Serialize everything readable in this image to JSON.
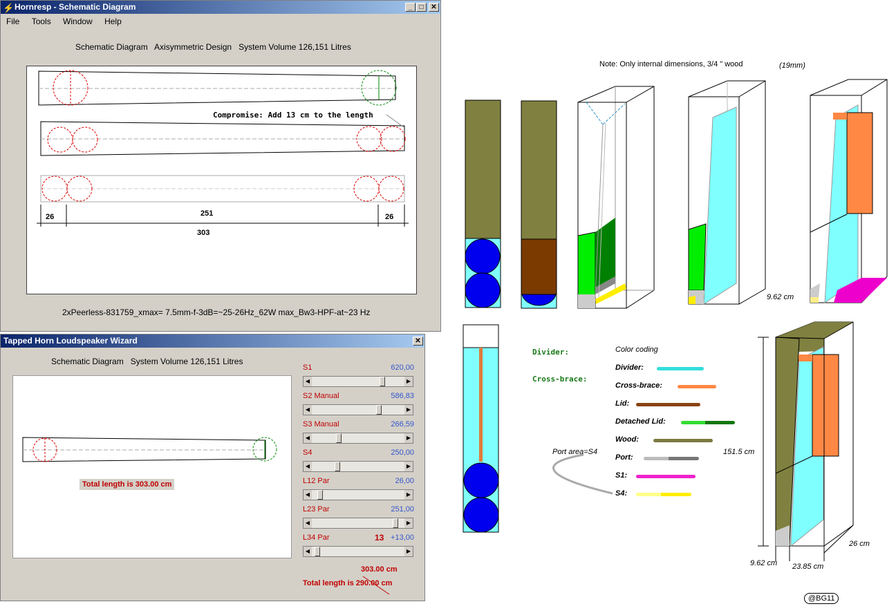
{
  "win1": {
    "title": "Hornresp - Schematic Diagram",
    "menu": [
      "File",
      "Tools",
      "Window",
      "Help"
    ],
    "header": "Schematic Diagram   Axisymmetric Design   System Volume 126,151 Litres",
    "compromise": "Compromise: Add 13 cm to the length",
    "dim_left": "26",
    "dim_mid": "251",
    "dim_right": "26",
    "dim_total": "303",
    "footer": "2xPeerless-831759_xmax= 7.5mm-f-3dB=~25-26Hz_62W max_Bw3-HPF-at~23 Hz"
  },
  "win2": {
    "title": "Tapped Horn Loudspeaker Wizard",
    "header": "Schematic Diagram   System Volume 126,151 Litres",
    "total_length_badge": "Total length is 303.00 cm",
    "sliders": [
      {
        "label": "S1",
        "value": "620,00",
        "pos": 0.78
      },
      {
        "label": "S2  Manual",
        "value": "586,83",
        "pos": 0.74
      },
      {
        "label": "S3  Manual",
        "value": "266,59",
        "pos": 0.28
      },
      {
        "label": "S4",
        "value": "250,00",
        "pos": 0.26
      },
      {
        "label": "L12  Par",
        "value": "26,00",
        "pos": 0.06
      },
      {
        "label": "L23  Par",
        "value": "251,00",
        "pos": 0.93
      },
      {
        "label": "L34  Par",
        "value": "+13,00",
        "pos": 0.03
      }
    ],
    "l34_extra": "13",
    "total_new": "303.00 cm",
    "total_old_label": "Total length is 290.00 cm"
  },
  "right": {
    "note": "Note: Only internal dimensions, 3/4 \" wood",
    "note_mm": "(19mm)",
    "dim_962_a": "9.62 cm",
    "dim_1515": "151.5 cm",
    "dim_962_b": "9.62 cm",
    "dim_2385": "23.85 cm",
    "dim_26": "26 cm",
    "divider_lbl": "Divider:",
    "crossbrace_lbl": "Cross-brace:",
    "port_area": "Port area=S4",
    "legend_title": "Color coding",
    "legend": [
      {
        "label": "Divider:",
        "colors": [
          "#33dddd"
        ]
      },
      {
        "label": "Cross-brace:",
        "colors": [
          "#ff8844"
        ]
      },
      {
        "label": "Lid:",
        "colors": [
          "#884411"
        ]
      },
      {
        "label": "Detached Lid:",
        "colors": [
          "#33dd33",
          "#117711"
        ]
      },
      {
        "label": "Wood:",
        "colors": [
          "#7a7a40"
        ]
      },
      {
        "label": "Port:",
        "colors": [
          "#bbbbbb",
          "#777777"
        ]
      },
      {
        "label": "S1:",
        "colors": [
          "#ee22cc"
        ]
      },
      {
        "label": "S4:",
        "colors": [
          "#ffff88",
          "#ffee00"
        ]
      }
    ],
    "signature": "@BG11"
  },
  "colors": {
    "cyan": "#80ffff",
    "olive": "#808040",
    "blue": "#0000ee",
    "brown": "#7a3a00",
    "green": "#00ee00",
    "darkgreen": "#008000",
    "orange": "#ff8844",
    "magenta": "#ee00cc",
    "yellow": "#ffee00"
  }
}
